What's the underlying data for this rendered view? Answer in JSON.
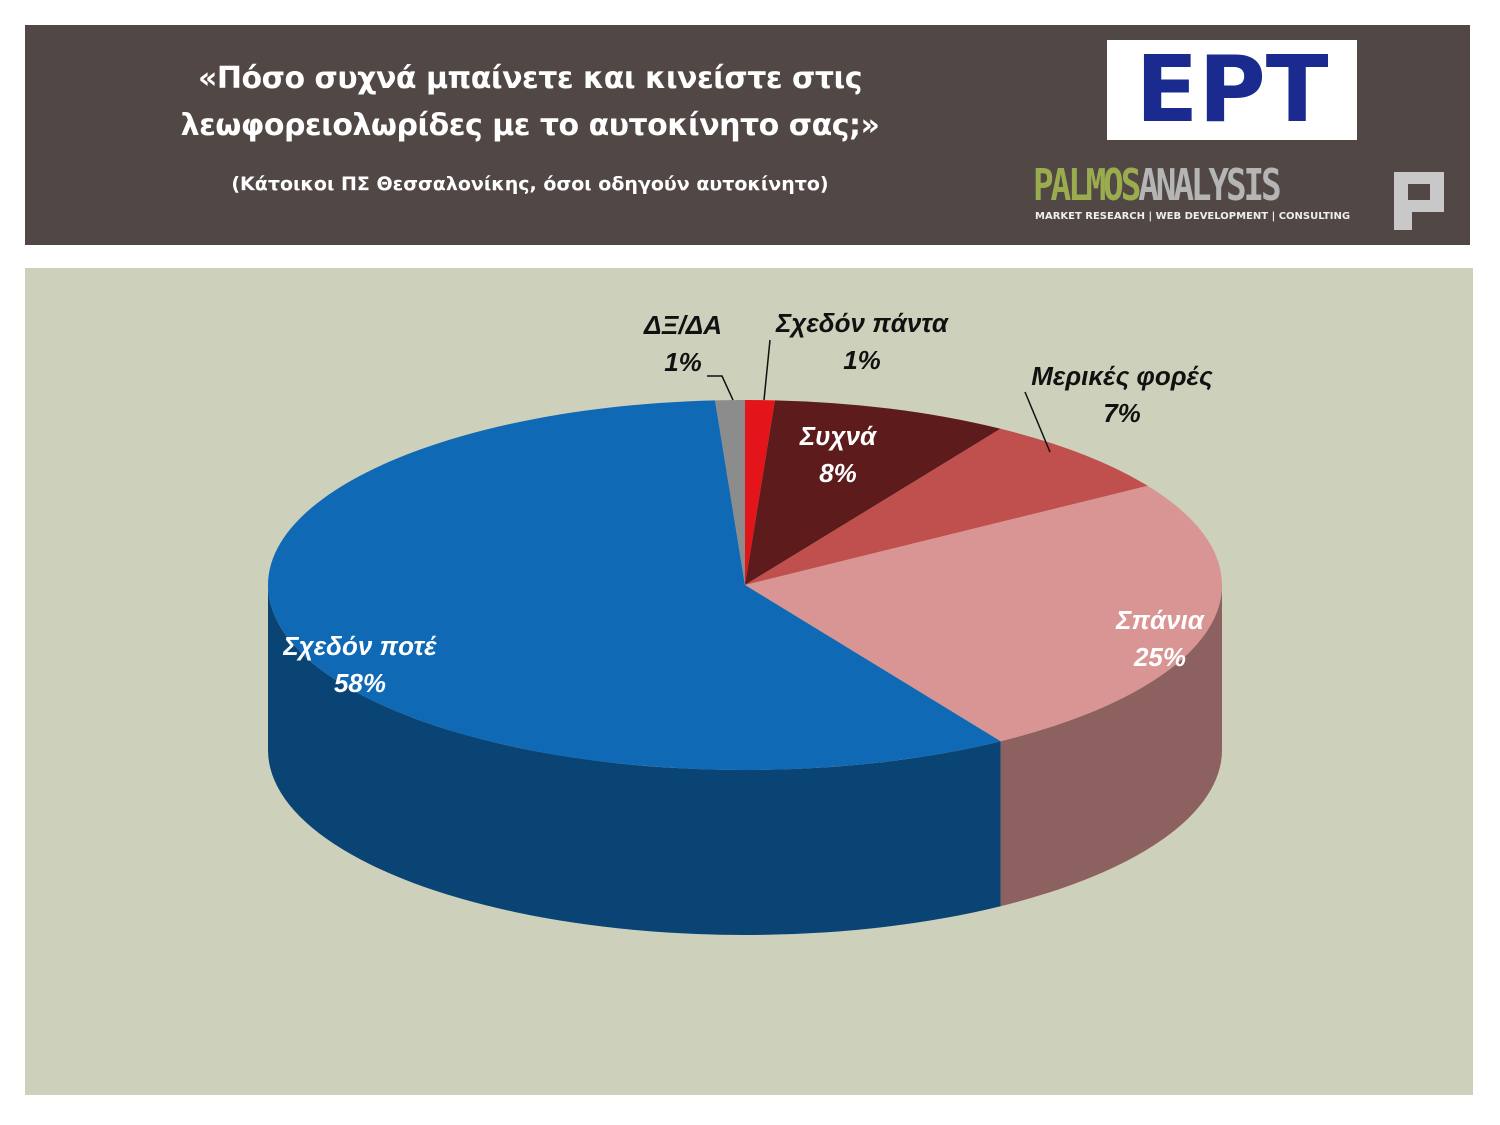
{
  "chart_data": {
    "type": "pie3d",
    "title": "«Πόσο συχνά μπαίνετε και κινείστε στις λεωφορειολωρίδες με το αυτοκίνητο σας;»",
    "subtitle": "(Κάτοικοι ΠΣ Θεσσαλονίκης, όσοι οδηγούν αυτοκίνητο)",
    "categories": [
      "Σχεδόν πάντα",
      "Συχνά",
      "Μερικές φορές",
      "Σπάνια",
      "Σχεδόν ποτέ",
      "ΔΞ/ΔΑ"
    ],
    "values": [
      1,
      8,
      7,
      25,
      58,
      1
    ],
    "value_labels": [
      "1%",
      "8%",
      "7%",
      "25%",
      "58%",
      "1%"
    ],
    "colors": [
      "#e3141a",
      "#5e1b1b",
      "#c0504d",
      "#d99594",
      "#0f69b4",
      "#8c8c8c"
    ]
  },
  "logos": {
    "ert": "ΕΡΤ",
    "palmos": "PALMOS",
    "analysis": "ANALYSIS",
    "tagline": "MARKET RESEARCH | WEB DEVELOPMENT | CONSULTING"
  }
}
